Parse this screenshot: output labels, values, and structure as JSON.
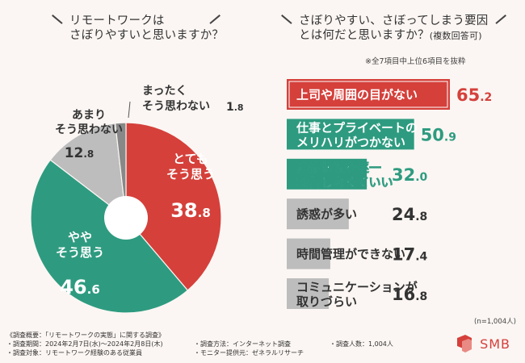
{
  "left": {
    "question": [
      "リモートワークは",
      "さぼりやすいと思いますか？"
    ]
  },
  "right": {
    "question": [
      "さぼりやすい、さぼってしまう要因",
      "とは何だと思いますか？"
    ],
    "question_suffix": "(複数回答可)",
    "note": "※全7項目中上位6項目を抜粋",
    "sample": "(n=1,004人)"
  },
  "colors": {
    "red": "#d5403b",
    "green": "#2e9b80",
    "gray": "#bdbdbd",
    "dark": "#333333"
  },
  "chart_data": [
    {
      "type": "pie",
      "title": "リモートワークはさぼりやすいと思いますか？",
      "unit": "%",
      "slices": [
        {
          "label": "とても\nそう思う",
          "value": 38.8,
          "color": "#d5403b"
        },
        {
          "label": "やや\nそう思う",
          "value": 46.6,
          "color": "#2e9b80"
        },
        {
          "label": "あまり\nそう思わない",
          "value": 12.8,
          "color": "#bdbdbd"
        },
        {
          "label": "まったく\nそう思わない",
          "value": 1.8,
          "color": "#888888"
        }
      ]
    },
    {
      "type": "bar",
      "title": "さぼりやすい、さぼってしまう要因とは何だと思いますか？(複数回答可)",
      "unit": "%",
      "categories": [
        "上司や周囲の目がない",
        "仕事とプライベートの\nメリハリがつかない",
        "進捗状況を逐一\n報告しなくていい",
        "誘惑が多い",
        "時間管理ができない",
        "コミュニケーションが\n取りづらい"
      ],
      "values": [
        65.2,
        50.9,
        32.0,
        24.8,
        17.4,
        16.8
      ],
      "value_labels": [
        "65.2",
        "50.9",
        "32.0",
        "24.8",
        "17.4",
        "16.8"
      ],
      "colors": [
        "#d5403b",
        "#2e9b80",
        "#2e9b80",
        "#bdbdbd",
        "#bdbdbd",
        "#bdbdbd"
      ],
      "xlim": [
        0,
        100
      ]
    }
  ],
  "footer": {
    "col1": [
      "《調査概要：「リモートワークの実態」に関する調査》",
      "・調査期間：2024年2月7日(水)～2024年2月8日(木)",
      "・調査対象：リモートワーク経験のある従業員"
    ],
    "col2": [
      "・調査方法：インターネット調査",
      "・モニター提供元：ゼネラルリサーチ"
    ],
    "col3": [
      "・調査人数：1,004人"
    ]
  },
  "brand": {
    "name": "SMB"
  }
}
